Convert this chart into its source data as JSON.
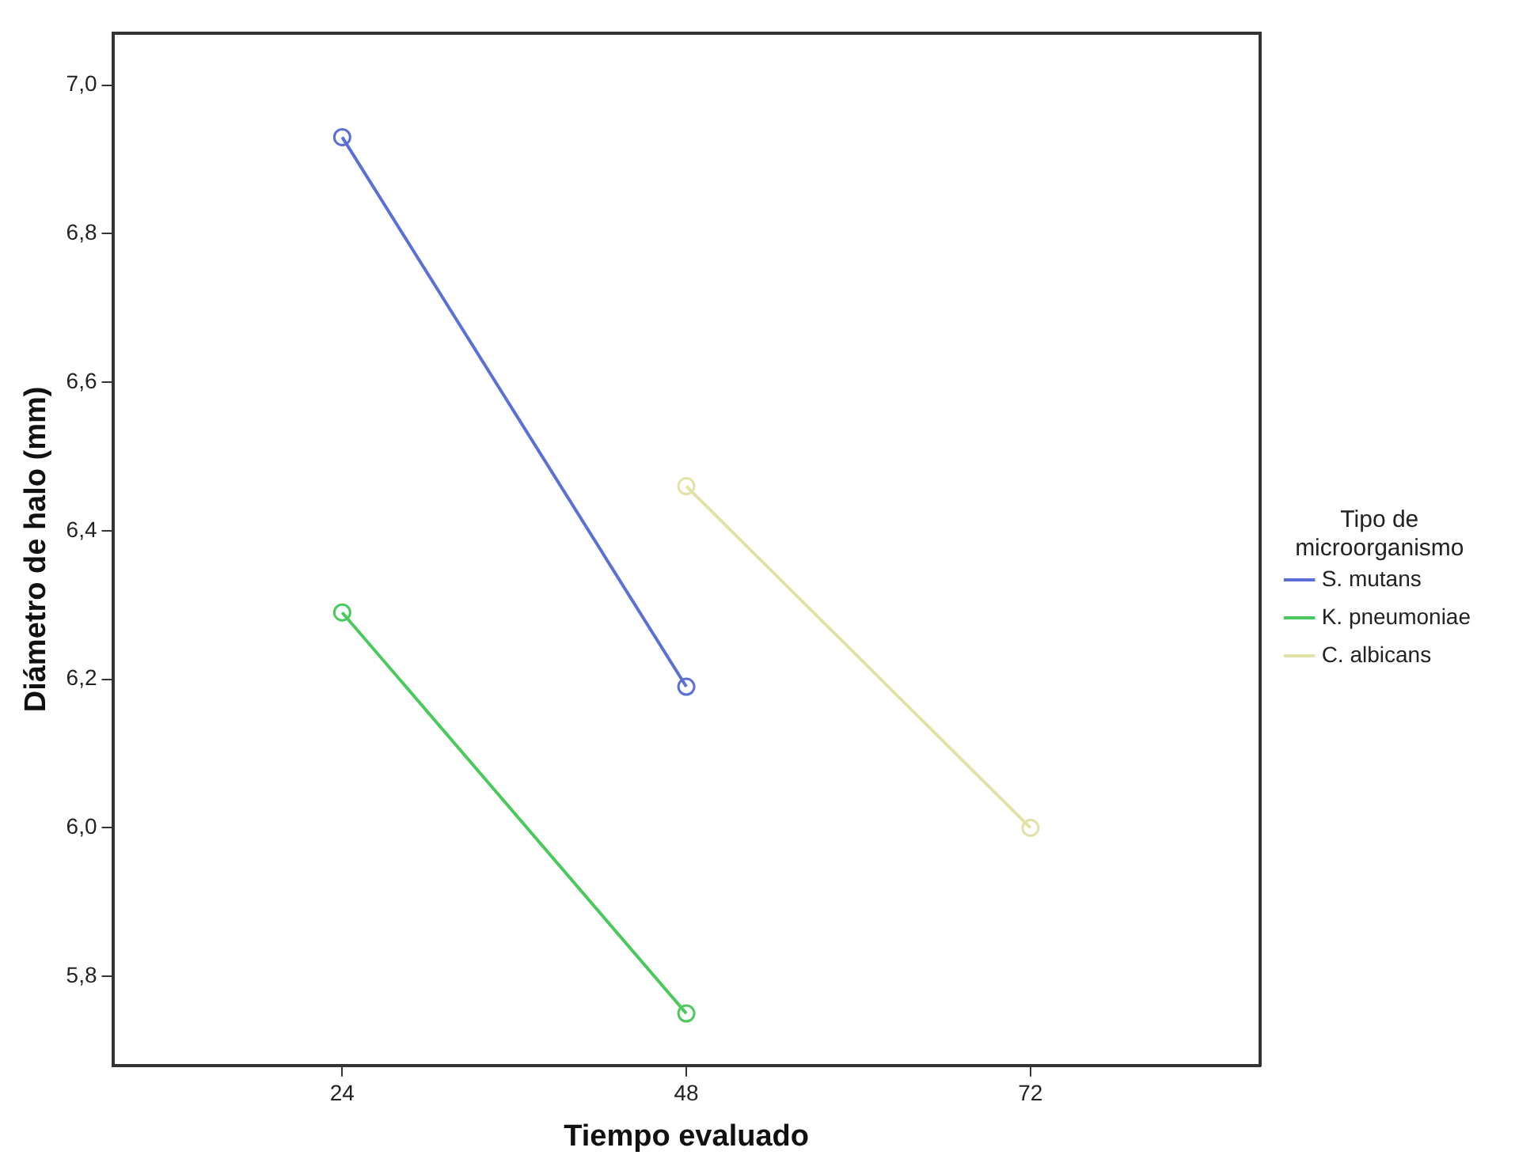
{
  "chart_data": {
    "type": "line",
    "xlabel": "Tiempo evaluado",
    "ylabel": "Diámetro de halo (mm)",
    "legend_title": "Tipo de\nmicroorganismo",
    "legend": "right",
    "marker": "circle",
    "grid": false,
    "xlim": [
      8,
      88
    ],
    "xticks": [
      24,
      48,
      72
    ],
    "ylim": [
      5.68,
      7.07
    ],
    "yticks": [
      {
        "value": 5.8,
        "label": "5,8"
      },
      {
        "value": 6.0,
        "label": "6,0"
      },
      {
        "value": 6.2,
        "label": "6,2"
      },
      {
        "value": 6.4,
        "label": "6,4"
      },
      {
        "value": 6.6,
        "label": "6,6"
      },
      {
        "value": 6.8,
        "label": "6,8"
      },
      {
        "value": 7.0,
        "label": "7,0"
      }
    ],
    "series": [
      {
        "name": "S. mutans",
        "color": "#5b6fd6",
        "x": [
          24,
          48
        ],
        "values": [
          6.93,
          6.19
        ]
      },
      {
        "name": "K. pneumoniae",
        "color": "#4cc95c",
        "x": [
          24,
          48
        ],
        "values": [
          6.29,
          5.75
        ]
      },
      {
        "name": "C. albicans",
        "color": "#e2e2a6",
        "x": [
          48,
          72
        ],
        "values": [
          6.46,
          6.0
        ]
      }
    ]
  }
}
